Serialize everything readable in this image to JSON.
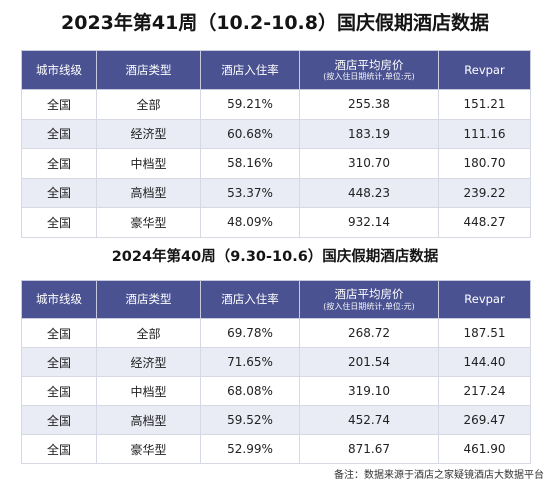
{
  "table1": {
    "title": "2023年第41周（10.2-10.8）国庆假期酒店数据",
    "headers": {
      "city_tier": "城市线级",
      "hotel_type": "酒店类型",
      "occupancy": "酒店入住率",
      "avg_price": "酒店平均房价",
      "avg_price_note": "(按入住日期统计,单位:元)",
      "revpar": "Revpar"
    },
    "rows": [
      {
        "city_tier": "全国",
        "hotel_type": "全部",
        "occupancy": "59.21%",
        "avg_price": "255.38",
        "revpar": "151.21"
      },
      {
        "city_tier": "全国",
        "hotel_type": "经济型",
        "occupancy": "60.68%",
        "avg_price": "183.19",
        "revpar": "111.16"
      },
      {
        "city_tier": "全国",
        "hotel_type": "中档型",
        "occupancy": "58.16%",
        "avg_price": "310.70",
        "revpar": "180.70"
      },
      {
        "city_tier": "全国",
        "hotel_type": "高档型",
        "occupancy": "53.37%",
        "avg_price": "448.23",
        "revpar": "239.22"
      },
      {
        "city_tier": "全国",
        "hotel_type": "豪华型",
        "occupancy": "48.09%",
        "avg_price": "932.14",
        "revpar": "448.27"
      }
    ]
  },
  "table2": {
    "title": "2024年第40周（9.30-10.6）国庆假期酒店数据",
    "headers": {
      "city_tier": "城市线级",
      "hotel_type": "酒店类型",
      "occupancy": "酒店入住率",
      "avg_price": "酒店平均房价",
      "avg_price_note": "(按入住日期统计,单位:元)",
      "revpar": "Revpar"
    },
    "rows": [
      {
        "city_tier": "全国",
        "hotel_type": "全部",
        "occupancy": "69.78%",
        "avg_price": "268.72",
        "revpar": "187.51"
      },
      {
        "city_tier": "全国",
        "hotel_type": "经济型",
        "occupancy": "71.65%",
        "avg_price": "201.54",
        "revpar": "144.40"
      },
      {
        "city_tier": "全国",
        "hotel_type": "中档型",
        "occupancy": "68.08%",
        "avg_price": "319.10",
        "revpar": "217.24"
      },
      {
        "city_tier": "全国",
        "hotel_type": "高档型",
        "occupancy": "59.52%",
        "avg_price": "452.74",
        "revpar": "269.47"
      },
      {
        "city_tier": "全国",
        "hotel_type": "豪华型",
        "occupancy": "52.99%",
        "avg_price": "871.67",
        "revpar": "461.90"
      }
    ]
  },
  "footnote": "备注：数据来源于酒店之家疑镜酒店大数据平台",
  "colors": {
    "header_bg": "#4a5292",
    "stripe_bg": "#e9ebf5"
  }
}
